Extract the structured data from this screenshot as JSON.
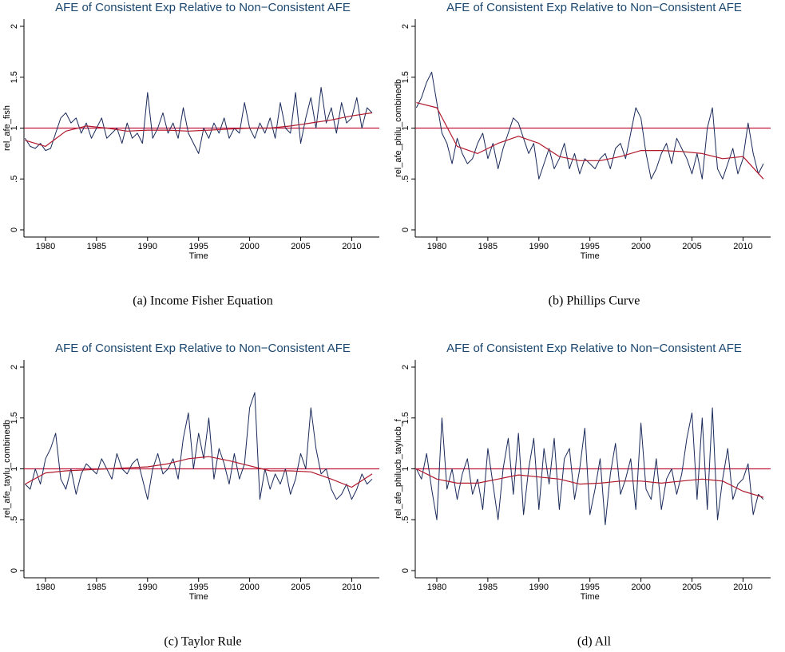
{
  "chart_data": [
    {
      "type": "line",
      "title": "AFE of Consistent Exp Relative to Non−Consistent AFE",
      "ylabel": "rel_afe_fish",
      "xlabel": "Time",
      "caption": "(a) Income Fisher Equation",
      "x": [
        1978,
        1978.5,
        1979,
        1979.5,
        1980,
        1980.5,
        1981,
        1981.5,
        1982,
        1982.5,
        1983,
        1983.5,
        1984,
        1984.5,
        1985,
        1985.5,
        1986,
        1986.5,
        1987,
        1987.5,
        1988,
        1988.5,
        1989,
        1989.5,
        1990,
        1990.5,
        1991,
        1991.5,
        1992,
        1992.5,
        1993,
        1993.5,
        1994,
        1994.5,
        1995,
        1995.5,
        1996,
        1996.5,
        1997,
        1997.5,
        1998,
        1998.5,
        1999,
        1999.5,
        2000,
        2000.5,
        2001,
        2001.5,
        2002,
        2002.5,
        2003,
        2003.5,
        2004,
        2004.5,
        2005,
        2005.5,
        2006,
        2006.5,
        2007,
        2007.5,
        2008,
        2008.5,
        2009,
        2009.5,
        2010,
        2010.5,
        2011,
        2011.5,
        2012
      ],
      "series": [
        {
          "color": "#1a2a5a",
          "values": [
            0.9,
            0.82,
            0.8,
            0.85,
            0.78,
            0.8,
            0.95,
            1.1,
            1.15,
            1.05,
            1.1,
            0.95,
            1.05,
            0.9,
            1.0,
            1.1,
            0.9,
            0.95,
            1.0,
            0.85,
            1.05,
            0.9,
            0.95,
            0.85,
            1.35,
            0.9,
            1.0,
            1.15,
            0.95,
            1.05,
            0.9,
            1.2,
            0.95,
            0.85,
            0.75,
            1.0,
            0.9,
            1.05,
            0.95,
            1.1,
            0.9,
            1.0,
            0.95,
            1.25,
            1.0,
            0.9,
            1.05,
            0.95,
            1.1,
            0.9,
            1.25,
            1.0,
            0.95,
            1.35,
            0.85,
            1.1,
            1.3,
            1.0,
            1.4,
            1.05,
            1.2,
            0.95,
            1.25,
            1.05,
            1.1,
            1.3,
            1.0,
            1.2,
            1.15
          ]
        },
        {
          "color": "#b2182b",
          "x": [
            1978,
            1980,
            1982,
            1984,
            1986,
            1988,
            1990,
            1992,
            1994,
            1996,
            1998,
            2000,
            2002,
            2004,
            2006,
            2008,
            2010,
            2012
          ],
          "values": [
            0.88,
            0.82,
            0.97,
            1.02,
            1.0,
            0.97,
            0.98,
            0.98,
            0.97,
            0.98,
            0.99,
            1.0,
            1.0,
            1.02,
            1.05,
            1.08,
            1.12,
            1.15
          ]
        }
      ],
      "reference_line": 1,
      "reference_color": "#c0143c",
      "xlim": [
        1978,
        2012
      ],
      "xticks": [
        1980,
        1985,
        1990,
        1995,
        2000,
        2005,
        2010
      ],
      "ylim": [
        0,
        2
      ],
      "yticks": [
        0,
        {
          "value": 0.5,
          "label": ".5"
        },
        1,
        1.5,
        2
      ]
    },
    {
      "type": "line",
      "title": "AFE of Consistent Exp Relative to Non−Consistent AFE",
      "ylabel": "rel_afe_philu_combinedb",
      "xlabel": "Time",
      "caption": "(b) Phillips Curve",
      "x": [
        1978,
        1978.5,
        1979,
        1979.5,
        1980,
        1980.5,
        1981,
        1981.5,
        1982,
        1982.5,
        1983,
        1983.5,
        1984,
        1984.5,
        1985,
        1985.5,
        1986,
        1986.5,
        1987,
        1987.5,
        1988,
        1988.5,
        1989,
        1989.5,
        1990,
        1990.5,
        1991,
        1991.5,
        1992,
        1992.5,
        1993,
        1993.5,
        1994,
        1994.5,
        1995,
        1995.5,
        1996,
        1996.5,
        1997,
        1997.5,
        1998,
        1998.5,
        1999,
        1999.5,
        2000,
        2000.5,
        2001,
        2001.5,
        2002,
        2002.5,
        2003,
        2003.5,
        2004,
        2004.5,
        2005,
        2005.5,
        2006,
        2006.5,
        2007,
        2007.5,
        2008,
        2008.5,
        2009,
        2009.5,
        2010,
        2010.5,
        2011,
        2011.5,
        2012
      ],
      "series": [
        {
          "color": "#1a2a5a",
          "values": [
            1.2,
            1.3,
            1.45,
            1.55,
            1.25,
            0.95,
            0.85,
            0.65,
            0.9,
            0.75,
            0.65,
            0.7,
            0.85,
            0.95,
            0.7,
            0.85,
            0.6,
            0.8,
            0.95,
            1.1,
            1.05,
            0.9,
            0.75,
            0.85,
            0.5,
            0.65,
            0.8,
            0.6,
            0.7,
            0.85,
            0.6,
            0.75,
            0.55,
            0.7,
            0.65,
            0.6,
            0.7,
            0.75,
            0.6,
            0.8,
            0.85,
            0.7,
            0.95,
            1.2,
            1.1,
            0.75,
            0.5,
            0.6,
            0.75,
            0.85,
            0.65,
            0.9,
            0.8,
            0.7,
            0.55,
            0.75,
            0.5,
            1.0,
            1.2,
            0.6,
            0.5,
            0.65,
            0.8,
            0.55,
            0.7,
            1.05,
            0.75,
            0.55,
            0.65
          ]
        },
        {
          "color": "#b2182b",
          "x": [
            1978,
            1980,
            1982,
            1984,
            1986,
            1988,
            1990,
            1992,
            1994,
            1996,
            1998,
            2000,
            2002,
            2004,
            2006,
            2008,
            2010,
            2012
          ],
          "values": [
            1.25,
            1.2,
            0.82,
            0.75,
            0.85,
            0.92,
            0.85,
            0.72,
            0.68,
            0.68,
            0.72,
            0.78,
            0.78,
            0.77,
            0.75,
            0.7,
            0.72,
            0.5
          ]
        }
      ],
      "reference_line": 1,
      "reference_color": "#c0143c",
      "xlim": [
        1978,
        2012
      ],
      "xticks": [
        1980,
        1985,
        1990,
        1995,
        2000,
        2005,
        2010
      ],
      "ylim": [
        0,
        2
      ],
      "yticks": [
        0,
        {
          "value": 0.5,
          "label": ".5"
        },
        1,
        1.5,
        2
      ]
    },
    {
      "type": "line",
      "title": "AFE of Consistent Exp Relative to Non−Consistent AFE",
      "ylabel": "rel_afe_taylu_combinedb",
      "xlabel": "Time",
      "caption": "(c) Taylor Rule",
      "x": [
        1978,
        1978.5,
        1979,
        1979.5,
        1980,
        1980.5,
        1981,
        1981.5,
        1982,
        1982.5,
        1983,
        1983.5,
        1984,
        1984.5,
        1985,
        1985.5,
        1986,
        1986.5,
        1987,
        1987.5,
        1988,
        1988.5,
        1989,
        1989.5,
        1990,
        1990.5,
        1991,
        1991.5,
        1992,
        1992.5,
        1993,
        1993.5,
        1994,
        1994.5,
        1995,
        1995.5,
        1996,
        1996.5,
        1997,
        1997.5,
        1998,
        1998.5,
        1999,
        1999.5,
        2000,
        2000.5,
        2001,
        2001.5,
        2002,
        2002.5,
        2003,
        2003.5,
        2004,
        2004.5,
        2005,
        2005.5,
        2006,
        2006.5,
        2007,
        2007.5,
        2008,
        2008.5,
        2009,
        2009.5,
        2010,
        2010.5,
        2011,
        2011.5,
        2012
      ],
      "series": [
        {
          "color": "#1a2a5a",
          "values": [
            0.85,
            0.8,
            1.0,
            0.85,
            1.1,
            1.2,
            1.35,
            0.9,
            0.8,
            1.0,
            0.75,
            0.95,
            1.05,
            1.0,
            0.95,
            1.1,
            1.0,
            0.9,
            1.15,
            1.0,
            0.95,
            1.05,
            1.1,
            0.9,
            0.7,
            1.0,
            1.15,
            0.95,
            1.0,
            1.1,
            0.9,
            1.3,
            1.55,
            1.0,
            1.35,
            1.1,
            1.5,
            0.9,
            1.2,
            1.05,
            0.85,
            1.15,
            0.9,
            1.05,
            1.6,
            1.75,
            0.7,
            1.0,
            0.8,
            0.95,
            0.85,
            1.0,
            0.75,
            0.9,
            1.15,
            1.0,
            1.6,
            1.2,
            0.95,
            1.0,
            0.8,
            0.7,
            0.75,
            0.85,
            0.7,
            0.8,
            0.95,
            0.85,
            0.9
          ]
        },
        {
          "color": "#b2182b",
          "x": [
            1978,
            1980,
            1982,
            1984,
            1986,
            1988,
            1990,
            1992,
            1994,
            1996,
            1998,
            2000,
            2002,
            2004,
            2006,
            2008,
            2010,
            2012
          ],
          "values": [
            0.85,
            0.96,
            0.98,
            0.99,
            1.0,
            1.01,
            1.02,
            1.05,
            1.1,
            1.12,
            1.08,
            1.03,
            0.98,
            0.98,
            0.97,
            0.9,
            0.82,
            0.95
          ]
        }
      ],
      "reference_line": 1,
      "reference_color": "#c0143c",
      "xlim": [
        1978,
        2012
      ],
      "xticks": [
        1980,
        1985,
        1990,
        1995,
        2000,
        2005,
        2010
      ],
      "ylim": [
        0,
        2
      ],
      "yticks": [
        0,
        {
          "value": 0.5,
          "label": ".5"
        },
        1,
        1.5,
        2
      ]
    },
    {
      "type": "line",
      "title": "AFE of Consistent Exp Relative to Non−Consistent AFE",
      "ylabel": "rel_afe_philucb_taylucb_f",
      "xlabel": "Time",
      "caption": "(d) All",
      "x": [
        1978,
        1978.5,
        1979,
        1979.5,
        1980,
        1980.5,
        1981,
        1981.5,
        1982,
        1982.5,
        1983,
        1983.5,
        1984,
        1984.5,
        1985,
        1985.5,
        1986,
        1986.5,
        1987,
        1987.5,
        1988,
        1988.5,
        1989,
        1989.5,
        1990,
        1990.5,
        1991,
        1991.5,
        1992,
        1992.5,
        1993,
        1993.5,
        1994,
        1994.5,
        1995,
        1995.5,
        1996,
        1996.5,
        1997,
        1997.5,
        1998,
        1998.5,
        1999,
        1999.5,
        2000,
        2000.5,
        2001,
        2001.5,
        2002,
        2002.5,
        2003,
        2003.5,
        2004,
        2004.5,
        2005,
        2005.5,
        2006,
        2006.5,
        2007,
        2007.5,
        2008,
        2008.5,
        2009,
        2009.5,
        2010,
        2010.5,
        2011,
        2011.5,
        2012
      ],
      "series": [
        {
          "color": "#1a2a5a",
          "values": [
            1.0,
            0.9,
            1.15,
            0.8,
            0.5,
            1.5,
            0.8,
            1.0,
            0.7,
            0.95,
            1.1,
            0.75,
            0.9,
            0.6,
            1.2,
            0.85,
            0.5,
            1.0,
            1.3,
            0.75,
            1.35,
            0.55,
            1.0,
            1.3,
            0.6,
            1.2,
            0.85,
            1.3,
            0.6,
            1.1,
            1.2,
            0.7,
            1.0,
            1.4,
            0.55,
            0.8,
            1.1,
            0.45,
            0.95,
            1.25,
            0.75,
            0.9,
            1.1,
            0.6,
            1.45,
            0.8,
            0.7,
            1.1,
            0.6,
            0.9,
            1.0,
            0.75,
            0.95,
            1.3,
            1.55,
            0.7,
            1.5,
            0.6,
            1.6,
            0.5,
            0.9,
            1.2,
            0.7,
            0.85,
            0.9,
            1.05,
            0.55,
            0.75,
            0.7
          ]
        },
        {
          "color": "#b2182b",
          "x": [
            1978,
            1980,
            1982,
            1984,
            1986,
            1988,
            1990,
            1992,
            1994,
            1996,
            1998,
            2000,
            2002,
            2004,
            2006,
            2008,
            2010,
            2012
          ],
          "values": [
            1.0,
            0.9,
            0.86,
            0.86,
            0.9,
            0.94,
            0.92,
            0.9,
            0.85,
            0.86,
            0.88,
            0.88,
            0.86,
            0.88,
            0.9,
            0.88,
            0.78,
            0.72
          ]
        }
      ],
      "reference_line": 1,
      "reference_color": "#c0143c",
      "xlim": [
        1978,
        2012
      ],
      "xticks": [
        1980,
        1985,
        1990,
        1995,
        2000,
        2005,
        2010
      ],
      "ylim": [
        0,
        2
      ],
      "yticks": [
        0,
        {
          "value": 0.5,
          "label": ".5"
        },
        1,
        1.5,
        2
      ]
    }
  ]
}
